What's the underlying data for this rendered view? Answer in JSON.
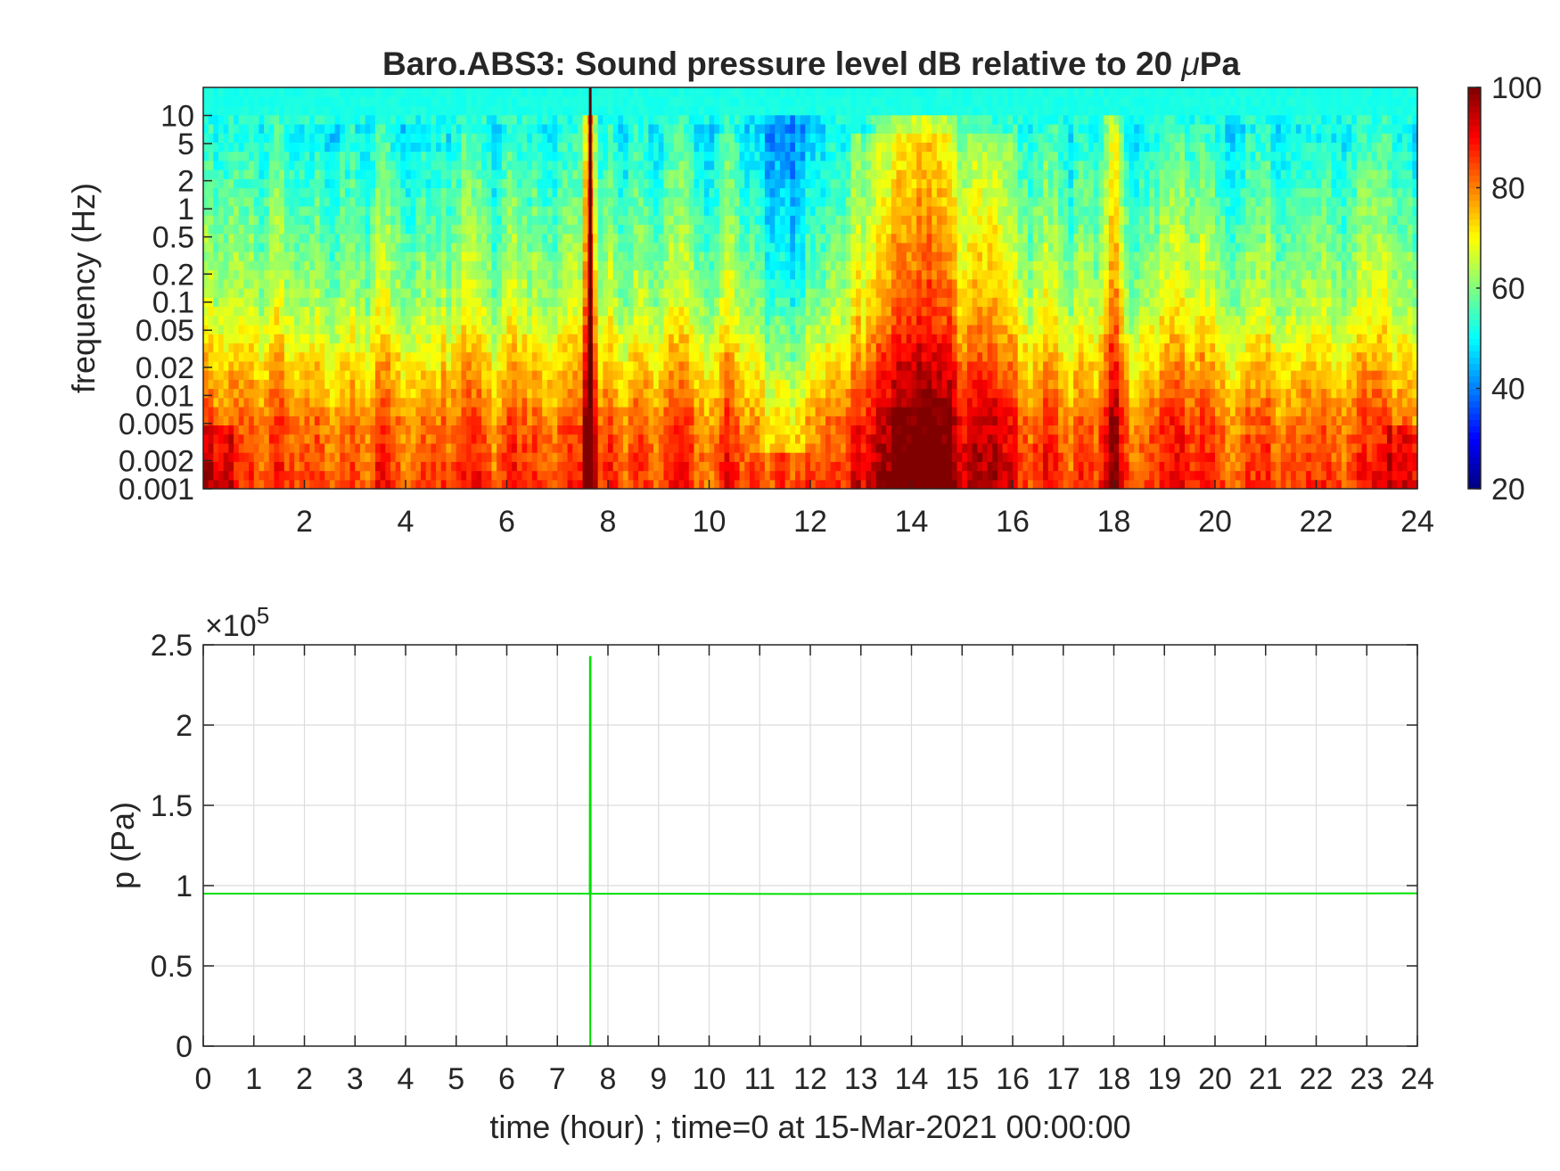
{
  "chart_data": [
    {
      "type": "heatmap",
      "title": "Baro.ABS3: Sound pressure level dB relative to 20 μPa",
      "title_main": "Baro.ABS3: Sound pressure level dB relative to 20 ",
      "title_mu": "μ",
      "title_unit": "Pa",
      "ylabel": "frequency (Hz)",
      "xlabel": "",
      "xlim": [
        0,
        24
      ],
      "ylim": [
        0.001,
        20
      ],
      "yscale": "log",
      "colormap": "jet",
      "clim": [
        20,
        100
      ],
      "colorbar_ticks": [
        "100",
        "80",
        "60",
        "40",
        "20"
      ],
      "colorbar_values": [
        100,
        80,
        60,
        40,
        20
      ],
      "x_ticks": [
        "2",
        "4",
        "6",
        "8",
        "10",
        "12",
        "14",
        "16",
        "18",
        "20",
        "22",
        "24"
      ],
      "x_tick_values": [
        2,
        4,
        6,
        8,
        10,
        12,
        14,
        16,
        18,
        20,
        22,
        24
      ],
      "y_ticks": [
        "10",
        "5",
        "2",
        "1",
        "0.5",
        "0.2",
        "0.1",
        "0.05",
        "0.02",
        "0.01",
        "0.005",
        "0.002",
        "0.001"
      ],
      "y_tick_values": [
        10,
        5,
        2,
        1,
        0.5,
        0.2,
        0.1,
        0.05,
        0.02,
        0.01,
        0.005,
        0.002,
        0.001
      ],
      "high_energy_events_hour": [
        7.65,
        14.2,
        17.95
      ],
      "low_energy_band_hour": [
        10.5,
        12.5
      ]
    },
    {
      "type": "line",
      "title": "",
      "xlabel": "time (hour) ; time=0 at 15-Mar-2021 00:00:00",
      "ylabel": "p (Pa)",
      "y_exponent_label": "×10",
      "y_exponent_power": "5",
      "xlim": [
        0,
        24
      ],
      "ylim": [
        0,
        2.5
      ],
      "y_multiplier": 100000,
      "grid": true,
      "line_color": "#00e000",
      "x_ticks": [
        "0",
        "1",
        "2",
        "3",
        "4",
        "5",
        "6",
        "7",
        "8",
        "9",
        "10",
        "11",
        "12",
        "13",
        "14",
        "15",
        "16",
        "17",
        "18",
        "19",
        "20",
        "21",
        "22",
        "23",
        "24"
      ],
      "x_tick_values": [
        0,
        1,
        2,
        3,
        4,
        5,
        6,
        7,
        8,
        9,
        10,
        11,
        12,
        13,
        14,
        15,
        16,
        17,
        18,
        19,
        20,
        21,
        22,
        23,
        24
      ],
      "y_ticks": [
        "0",
        "0.5",
        "1",
        "1.5",
        "2",
        "2.5"
      ],
      "y_tick_values": [
        0,
        0.5,
        1,
        1.5,
        2,
        2.5
      ],
      "series": [
        {
          "x": [
            0,
            7.64,
            7.645,
            7.65,
            7.655,
            7.66,
            12,
            24
          ],
          "y": [
            0.95,
            0.95,
            2.43,
            0.0,
            2.43,
            0.95,
            0.948,
            0.952
          ]
        }
      ]
    }
  ]
}
